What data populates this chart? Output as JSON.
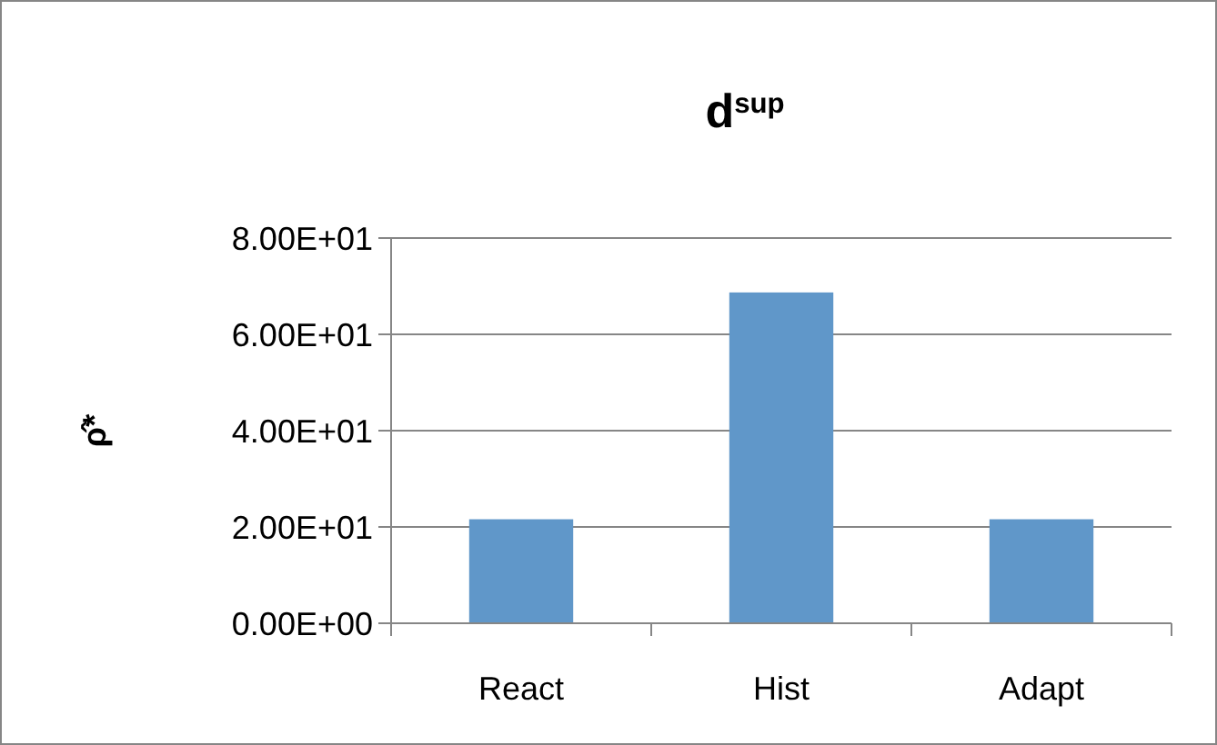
{
  "chart_data": {
    "type": "bar",
    "title": "d$^{sup}$",
    "ylabel": "ρ̂*",
    "categories": [
      "React",
      "Hist",
      "Adapt"
    ],
    "values": [
      21.6,
      68.7,
      21.6
    ],
    "color": "#6097c9",
    "ylim": [
      0,
      80
    ],
    "yticks": [
      {
        "value": 0,
        "label": "0.00E+00"
      },
      {
        "value": 20,
        "label": "2.00E+01"
      },
      {
        "value": 40,
        "label": "4.00E+01"
      },
      {
        "value": 60,
        "label": "6.00E+01"
      },
      {
        "value": 80,
        "label": "8.00E+01"
      }
    ],
    "grid": "y"
  }
}
